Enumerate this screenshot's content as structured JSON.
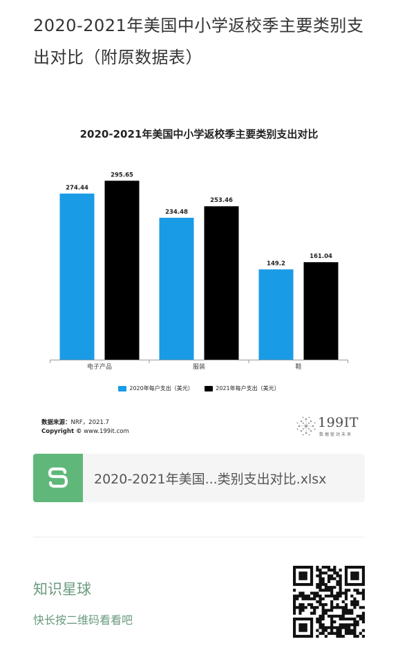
{
  "page": {
    "title": "2020-2021年美国中小学返校季主要类别支出对比（附原数据表）"
  },
  "chart_data": {
    "type": "bar",
    "title": "2020-2021年美国中小学返校季主要类别支出对比",
    "categories": [
      "电子产品",
      "服装",
      "鞋"
    ],
    "series": [
      {
        "name": "2020年每户支出（美元）",
        "values": [
          274.44,
          234.48,
          149.2
        ],
        "color": "#1a9be6"
      },
      {
        "name": "2021年每户支出（美元）",
        "values": [
          295.65,
          253.46,
          161.04
        ],
        "color": "#000000"
      }
    ],
    "data_labels": [
      [
        "274.44",
        "234.48",
        "149.2"
      ],
      [
        "295.65",
        "253.46",
        "161.04"
      ]
    ],
    "ylim": [
      0,
      320
    ],
    "grid": false,
    "legend": "bottom"
  },
  "source": {
    "label": "数据来源：",
    "text": "NRF，2021.7",
    "copyright_label": "Copyright ©",
    "copyright_text": "www.199it.com"
  },
  "logo": {
    "text": "199IT",
    "tagline": "数据驱动未来"
  },
  "file": {
    "icon": "spreadsheet-s-icon",
    "name": "2020-2021年美国...类别支出对比.xlsx",
    "icon_color": "#5fb87a"
  },
  "footer": {
    "title": "知识星球",
    "hint": "快长按二维码看看吧"
  }
}
